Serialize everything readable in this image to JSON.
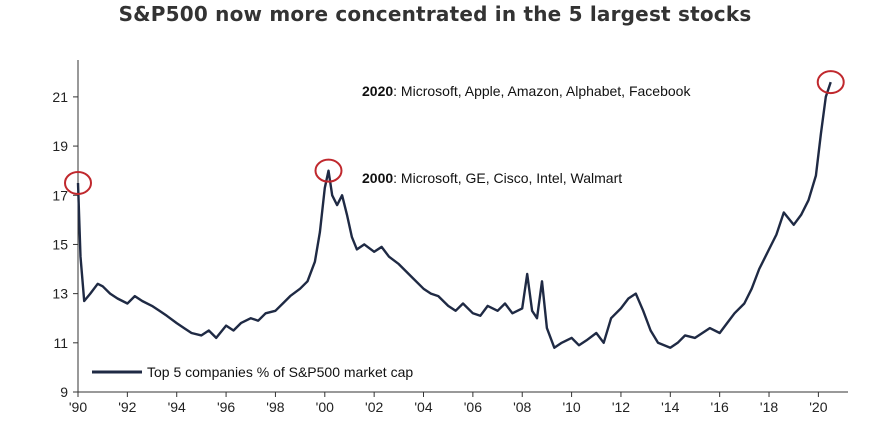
{
  "chart_data": {
    "type": "line",
    "title": "S&P500 now more concentrated in the 5 largest stocks",
    "xlabel": "",
    "ylabel": "",
    "ylim": [
      9,
      22.5
    ],
    "xlim": [
      1990,
      2021.2
    ],
    "y_ticks": [
      9,
      11,
      13,
      15,
      17,
      19,
      21
    ],
    "x_ticks": [
      {
        "year": 1990,
        "label": "'90"
      },
      {
        "year": 1992,
        "label": "'92"
      },
      {
        "year": 1994,
        "label": "'94"
      },
      {
        "year": 1996,
        "label": "'96"
      },
      {
        "year": 1998,
        "label": "'98"
      },
      {
        "year": 2000,
        "label": "'00"
      },
      {
        "year": 2002,
        "label": "'02"
      },
      {
        "year": 2004,
        "label": "'04"
      },
      {
        "year": 2006,
        "label": "'06"
      },
      {
        "year": 2008,
        "label": "'08"
      },
      {
        "year": 2010,
        "label": "'10"
      },
      {
        "year": 2012,
        "label": "'12"
      },
      {
        "year": 2014,
        "label": "'14"
      },
      {
        "year": 2016,
        "label": "'16"
      },
      {
        "year": 2018,
        "label": "'18"
      },
      {
        "year": 2020,
        "label": "'20"
      }
    ],
    "grid": false,
    "legend_position": "bottom-left",
    "series": [
      {
        "name": "Top 5 companies % of S&P500 market cap",
        "color": "#1f2a44",
        "x": [
          1990.0,
          1990.1,
          1990.25,
          1990.5,
          1990.8,
          1991.0,
          1991.3,
          1991.6,
          1992.0,
          1992.3,
          1992.6,
          1993.0,
          1993.3,
          1993.6,
          1994.0,
          1994.3,
          1994.6,
          1995.0,
          1995.3,
          1995.6,
          1996.0,
          1996.3,
          1996.6,
          1997.0,
          1997.3,
          1997.6,
          1998.0,
          1998.3,
          1998.6,
          1999.0,
          1999.3,
          1999.6,
          1999.8,
          2000.0,
          2000.15,
          2000.3,
          2000.5,
          2000.7,
          2000.9,
          2001.1,
          2001.3,
          2001.6,
          2002.0,
          2002.3,
          2002.6,
          2003.0,
          2003.3,
          2003.6,
          2004.0,
          2004.3,
          2004.6,
          2005.0,
          2005.3,
          2005.6,
          2006.0,
          2006.3,
          2006.6,
          2007.0,
          2007.3,
          2007.6,
          2008.0,
          2008.2,
          2008.4,
          2008.6,
          2008.8,
          2009.0,
          2009.3,
          2009.6,
          2010.0,
          2010.3,
          2010.6,
          2011.0,
          2011.3,
          2011.6,
          2012.0,
          2012.3,
          2012.6,
          2012.9,
          2013.2,
          2013.5,
          2014.0,
          2014.3,
          2014.6,
          2015.0,
          2015.3,
          2015.6,
          2016.0,
          2016.3,
          2016.6,
          2017.0,
          2017.3,
          2017.6,
          2018.0,
          2018.3,
          2018.6,
          2019.0,
          2019.3,
          2019.6,
          2019.9,
          2020.1,
          2020.3,
          2020.5
        ],
        "values": [
          17.5,
          14.5,
          12.7,
          13.0,
          13.4,
          13.3,
          13.0,
          12.8,
          12.6,
          12.9,
          12.7,
          12.5,
          12.3,
          12.1,
          11.8,
          11.6,
          11.4,
          11.3,
          11.5,
          11.2,
          11.7,
          11.5,
          11.8,
          12.0,
          11.9,
          12.2,
          12.3,
          12.6,
          12.9,
          13.2,
          13.5,
          14.3,
          15.5,
          17.3,
          18.0,
          17.0,
          16.6,
          17.0,
          16.2,
          15.3,
          14.8,
          15.0,
          14.7,
          14.9,
          14.5,
          14.2,
          13.9,
          13.6,
          13.2,
          13.0,
          12.9,
          12.5,
          12.3,
          12.6,
          12.2,
          12.1,
          12.5,
          12.3,
          12.6,
          12.2,
          12.4,
          13.8,
          12.3,
          12.0,
          13.5,
          11.6,
          10.8,
          11.0,
          11.2,
          10.9,
          11.1,
          11.4,
          11.0,
          12.0,
          12.4,
          12.8,
          13.0,
          12.3,
          11.5,
          11.0,
          10.8,
          11.0,
          11.3,
          11.2,
          11.4,
          11.6,
          11.4,
          11.8,
          12.2,
          12.6,
          13.2,
          14.0,
          14.8,
          15.4,
          16.3,
          15.8,
          16.2,
          16.8,
          17.8,
          19.5,
          21.0,
          21.6
        ]
      }
    ],
    "annotations": [
      {
        "bold": "2020",
        "text": ": Microsoft, Apple, Amazon, Alphabet, Facebook",
        "x": 2020.5,
        "y": 21.6
      },
      {
        "bold": "2000",
        "text": ": Microsoft, GE, Cisco, Intel, Walmart",
        "x": 2000.15,
        "y": 18.0
      },
      {
        "bold": "",
        "text": "",
        "x": 1990.0,
        "y": 17.5
      }
    ],
    "highlight_color": "#c0282d"
  }
}
